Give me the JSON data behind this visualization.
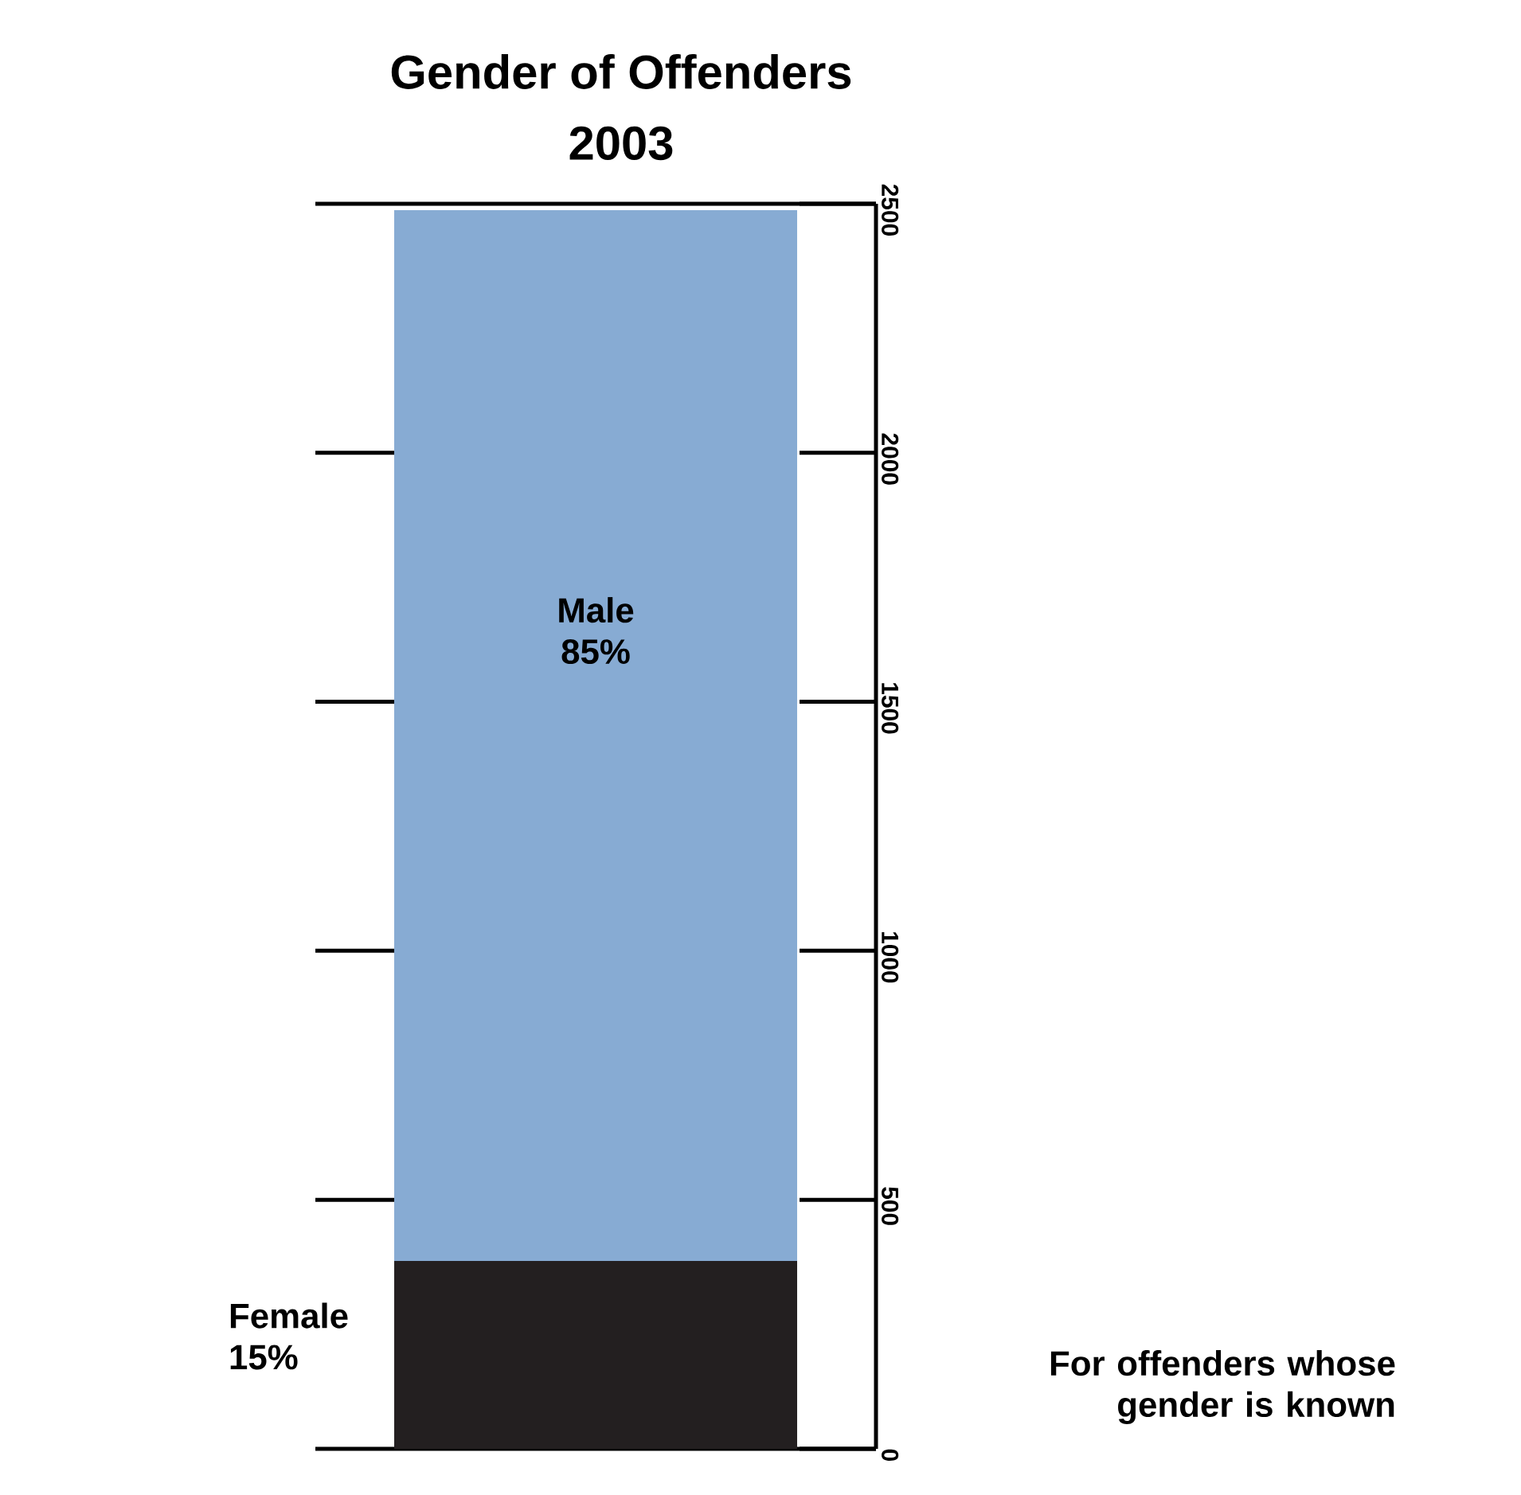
{
  "chart_data": {
    "type": "bar",
    "title": "Gender of Offenders",
    "subtitle": "2003",
    "stacked": true,
    "categories": [
      null
    ],
    "series": [
      {
        "name": "Female 15%",
        "color": "#231f20",
        "values": [
          377
        ]
      },
      {
        "name": "Male 85%",
        "color": "#87abd3",
        "values": [
          2110
        ]
      }
    ],
    "ylim": [
      0,
      2500
    ],
    "yticks": [
      0,
      500,
      1000,
      1500,
      2000,
      2500
    ],
    "annotations": [
      "For offenders whose gender is known"
    ]
  }
}
